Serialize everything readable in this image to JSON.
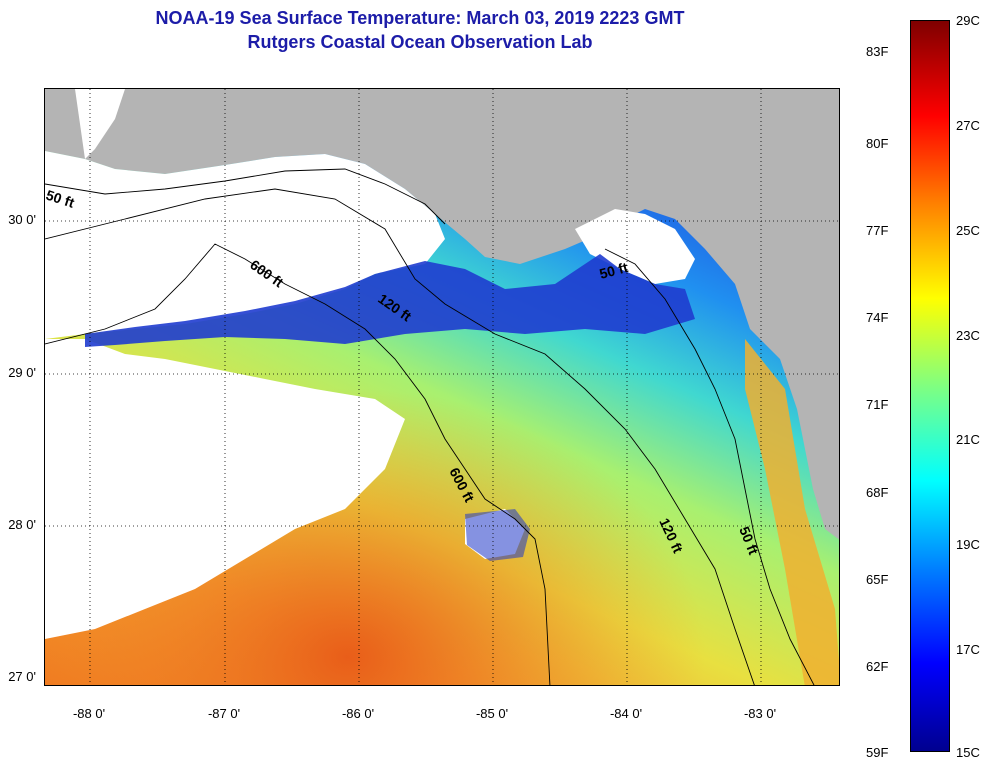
{
  "title": {
    "line1": "NOAA-19 Sea Surface Temperature:  March 03, 2019 2223 GMT",
    "line2": "Rutgers Coastal Ocean Observation Lab"
  },
  "axes": {
    "lat_labels": [
      "30 0'",
      "29 0'",
      "28 0'",
      "27 0'"
    ],
    "lon_labels": [
      "-88 0'",
      "-87 0'",
      "-86 0'",
      "-85 0'",
      "-84 0'",
      "-83 0'"
    ]
  },
  "contours": {
    "labels": [
      "50 ft",
      "600 ft",
      "120 ft",
      "50 ft",
      "600 ft",
      "120 ft",
      "50 ft"
    ]
  },
  "colorbar": {
    "fahrenheit": [
      "83F",
      "80F",
      "77F",
      "74F",
      "71F",
      "68F",
      "65F",
      "62F",
      "59F"
    ],
    "celsius": [
      "29C",
      "27C",
      "25C",
      "23C",
      "21C",
      "19C",
      "17C",
      "15C"
    ],
    "colors": [
      "#7f0000",
      "#ff0000",
      "#ff8000",
      "#ffff00",
      "#80ff80",
      "#00ffff",
      "#0080ff",
      "#0000ff",
      "#00008f"
    ]
  },
  "colors": {
    "land": "#b4b4b4",
    "cloud": "#ffffff",
    "title": "#1c1ca8"
  }
}
